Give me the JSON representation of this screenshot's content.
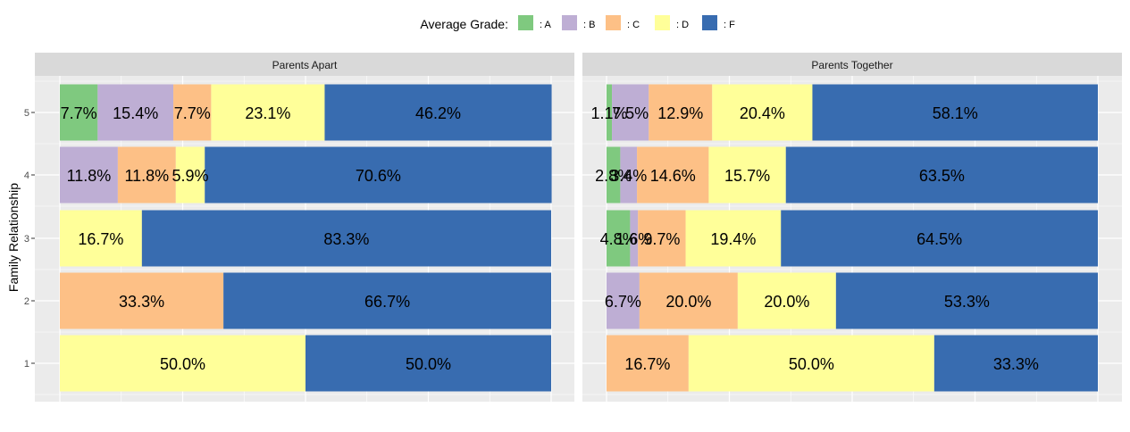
{
  "chart_data": {
    "type": "bar",
    "orientation": "horizontal",
    "stacked": "percent",
    "legend": {
      "title": "Average Grade:",
      "position": "top",
      "entries": [
        {
          "key": "A",
          "label": ": A",
          "color": "#7FC97F"
        },
        {
          "key": "B",
          "label": ": B",
          "color": "#BEAED4"
        },
        {
          "key": "C",
          "label": ": C",
          "color": "#FDC086"
        },
        {
          "key": "D",
          "label": ": D",
          "color": "#FFFF99"
        },
        {
          "key": "F",
          "label": ": F",
          "color": "#386CB0"
        }
      ]
    },
    "ylabel": "Family Relationship",
    "xlabel": "",
    "xlim": [
      0,
      100
    ],
    "categories": [
      "1",
      "2",
      "3",
      "4",
      "5"
    ],
    "grid": true,
    "panels": [
      {
        "title": "Parents Apart",
        "bars": [
          {
            "category": "1",
            "segments": [
              {
                "grade": "D",
                "value": 50.0,
                "label": "50.0%"
              },
              {
                "grade": "F",
                "value": 50.0,
                "label": "50.0%"
              }
            ]
          },
          {
            "category": "2",
            "segments": [
              {
                "grade": "C",
                "value": 33.3,
                "label": "33.3%"
              },
              {
                "grade": "F",
                "value": 66.7,
                "label": "66.7%"
              }
            ]
          },
          {
            "category": "3",
            "segments": [
              {
                "grade": "D",
                "value": 16.7,
                "label": "16.7%"
              },
              {
                "grade": "F",
                "value": 83.3,
                "label": "83.3%"
              }
            ]
          },
          {
            "category": "4",
            "segments": [
              {
                "grade": "B",
                "value": 11.8,
                "label": "11.8%"
              },
              {
                "grade": "C",
                "value": 11.8,
                "label": "11.8%"
              },
              {
                "grade": "D",
                "value": 5.9,
                "label": "5.9%"
              },
              {
                "grade": "F",
                "value": 70.6,
                "label": "70.6%"
              }
            ]
          },
          {
            "category": "5",
            "segments": [
              {
                "grade": "A",
                "value": 7.7,
                "label": "7.7%"
              },
              {
                "grade": "B",
                "value": 15.4,
                "label": "15.4%"
              },
              {
                "grade": "C",
                "value": 7.7,
                "label": "7.7%"
              },
              {
                "grade": "D",
                "value": 23.1,
                "label": "23.1%"
              },
              {
                "grade": "F",
                "value": 46.2,
                "label": "46.2%"
              }
            ]
          }
        ]
      },
      {
        "title": "Parents Together",
        "bars": [
          {
            "category": "1",
            "segments": [
              {
                "grade": "C",
                "value": 16.7,
                "label": "16.7%"
              },
              {
                "grade": "D",
                "value": 50.0,
                "label": "50.0%"
              },
              {
                "grade": "F",
                "value": 33.3,
                "label": "33.3%"
              }
            ]
          },
          {
            "category": "2",
            "segments": [
              {
                "grade": "B",
                "value": 6.7,
                "label": "6.7%"
              },
              {
                "grade": "C",
                "value": 20.0,
                "label": "20.0%"
              },
              {
                "grade": "D",
                "value": 20.0,
                "label": "20.0%"
              },
              {
                "grade": "F",
                "value": 53.3,
                "label": "53.3%"
              }
            ]
          },
          {
            "category": "3",
            "segments": [
              {
                "grade": "A",
                "value": 4.8,
                "label": "4.8%"
              },
              {
                "grade": "B",
                "value": 1.6,
                "label": "1.6%"
              },
              {
                "grade": "C",
                "value": 9.7,
                "label": "9.7%"
              },
              {
                "grade": "D",
                "value": 19.4,
                "label": "19.4%"
              },
              {
                "grade": "F",
                "value": 64.5,
                "label": "64.5%"
              }
            ]
          },
          {
            "category": "4",
            "segments": [
              {
                "grade": "A",
                "value": 2.8,
                "label": "2.8%"
              },
              {
                "grade": "B",
                "value": 3.4,
                "label": "3.4%"
              },
              {
                "grade": "C",
                "value": 14.6,
                "label": "14.6%"
              },
              {
                "grade": "D",
                "value": 15.7,
                "label": "15.7%"
              },
              {
                "grade": "F",
                "value": 63.5,
                "label": "63.5%"
              }
            ]
          },
          {
            "category": "5",
            "segments": [
              {
                "grade": "A",
                "value": 1.1,
                "label": "1.1%"
              },
              {
                "grade": "B",
                "value": 7.5,
                "label": "7.5%"
              },
              {
                "grade": "C",
                "value": 12.9,
                "label": "12.9%"
              },
              {
                "grade": "D",
                "value": 20.4,
                "label": "20.4%"
              },
              {
                "grade": "F",
                "value": 58.1,
                "label": "58.1%"
              }
            ]
          }
        ]
      }
    ]
  }
}
